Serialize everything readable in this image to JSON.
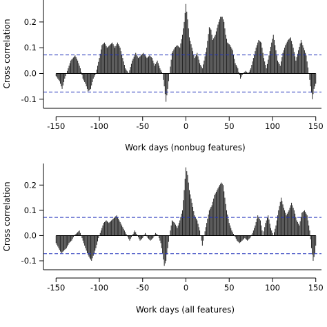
{
  "chart_data": [
    {
      "type": "bar",
      "xlabel": "Work days (nonbug features)",
      "ylabel": "Cross correlation",
      "xlim": [
        -155,
        155
      ],
      "ylim": [
        -0.13,
        0.28
      ],
      "xticks": [
        -150,
        -100,
        -50,
        0,
        50,
        100,
        150
      ],
      "xtick_labels": [
        "-150",
        "-100",
        "-50",
        "0",
        "50",
        "100",
        "150"
      ],
      "yticks": [
        -0.1,
        0.0,
        0.1,
        0.2
      ],
      "ytick_labels": [
        "-0.1",
        "0.0",
        "0.1",
        "0.2"
      ],
      "confidence_band": [
        -0.072,
        0.072
      ],
      "lag_range": [
        -150,
        150
      ],
      "anchors": [
        [
          -150,
          -0.01
        ],
        [
          -146,
          -0.03
        ],
        [
          -143,
          -0.06
        ],
        [
          -140,
          -0.02
        ],
        [
          -137,
          0.01
        ],
        [
          -133,
          0.05
        ],
        [
          -128,
          0.07
        ],
        [
          -125,
          0.05
        ],
        [
          -122,
          0.02
        ],
        [
          -119,
          -0.02
        ],
        [
          -116,
          -0.04
        ],
        [
          -113,
          -0.07
        ],
        [
          -110,
          -0.06
        ],
        [
          -107,
          -0.02
        ],
        [
          -104,
          0.0
        ],
        [
          -100,
          0.06
        ],
        [
          -97,
          0.11
        ],
        [
          -94,
          0.12
        ],
        [
          -91,
          0.1
        ],
        [
          -88,
          0.11
        ],
        [
          -85,
          0.12
        ],
        [
          -82,
          0.1
        ],
        [
          -79,
          0.12
        ],
        [
          -76,
          0.1
        ],
        [
          -73,
          0.06
        ],
        [
          -70,
          0.02
        ],
        [
          -66,
          0.0
        ],
        [
          -62,
          0.05
        ],
        [
          -58,
          0.08
        ],
        [
          -55,
          0.06
        ],
        [
          -52,
          0.07
        ],
        [
          -49,
          0.08
        ],
        [
          -45,
          0.06
        ],
        [
          -42,
          0.07
        ],
        [
          -39,
          0.06
        ],
        [
          -36,
          0.03
        ],
        [
          -33,
          0.05
        ],
        [
          -30,
          0.02
        ],
        [
          -27,
          0.0
        ],
        [
          -25,
          -0.05
        ],
        [
          -23,
          -0.11
        ],
        [
          -21,
          -0.06
        ],
        [
          -19,
          0.0
        ],
        [
          -16,
          0.08
        ],
        [
          -13,
          0.1
        ],
        [
          -10,
          0.11
        ],
        [
          -7,
          0.1
        ],
        [
          -4,
          0.15
        ],
        [
          -2,
          0.2
        ],
        [
          0,
          0.27
        ],
        [
          2,
          0.21
        ],
        [
          4,
          0.14
        ],
        [
          7,
          0.1
        ],
        [
          10,
          0.06
        ],
        [
          13,
          0.08
        ],
        [
          16,
          0.04
        ],
        [
          19,
          0.02
        ],
        [
          21,
          0.05
        ],
        [
          24,
          0.1
        ],
        [
          27,
          0.18
        ],
        [
          29,
          0.17
        ],
        [
          31,
          0.13
        ],
        [
          34,
          0.15
        ],
        [
          37,
          0.19
        ],
        [
          40,
          0.22
        ],
        [
          42,
          0.22
        ],
        [
          44,
          0.2
        ],
        [
          46,
          0.15
        ],
        [
          48,
          0.12
        ],
        [
          51,
          0.11
        ],
        [
          54,
          0.09
        ],
        [
          57,
          0.04
        ],
        [
          60,
          0.02
        ],
        [
          63,
          -0.02
        ],
        [
          66,
          0.0
        ],
        [
          69,
          0.01
        ],
        [
          72,
          0.0
        ],
        [
          75,
          0.02
        ],
        [
          78,
          0.06
        ],
        [
          81,
          0.1
        ],
        [
          84,
          0.13
        ],
        [
          87,
          0.12
        ],
        [
          90,
          0.06
        ],
        [
          93,
          0.02
        ],
        [
          96,
          0.07
        ],
        [
          99,
          0.12
        ],
        [
          101,
          0.15
        ],
        [
          103,
          0.11
        ],
        [
          106,
          0.05
        ],
        [
          109,
          0.03
        ],
        [
          112,
          0.08
        ],
        [
          115,
          0.11
        ],
        [
          118,
          0.13
        ],
        [
          121,
          0.14
        ],
        [
          124,
          0.1
        ],
        [
          127,
          0.05
        ],
        [
          130,
          0.09
        ],
        [
          133,
          0.13
        ],
        [
          136,
          0.1
        ],
        [
          139,
          0.07
        ],
        [
          142,
          0.0
        ],
        [
          144,
          -0.05
        ],
        [
          146,
          -0.1
        ],
        [
          148,
          -0.06
        ],
        [
          150,
          -0.04
        ]
      ]
    },
    {
      "type": "bar",
      "xlabel": "Work days (all features)",
      "ylabel": "Cross correlation",
      "xlim": [
        -155,
        155
      ],
      "ylim": [
        -0.13,
        0.28
      ],
      "xticks": [
        -150,
        -100,
        -50,
        0,
        50,
        100,
        150
      ],
      "xtick_labels": [
        "-150",
        "-100",
        "-50",
        "0",
        "50",
        "100",
        "150"
      ],
      "yticks": [
        -0.1,
        0.0,
        0.1,
        0.2
      ],
      "ytick_labels": [
        "-0.1",
        "0.0",
        "0.1",
        "0.2"
      ],
      "confidence_band": [
        -0.072,
        0.072
      ],
      "lag_range": [
        -150,
        150
      ],
      "anchors": [
        [
          -150,
          -0.03
        ],
        [
          -147,
          -0.05
        ],
        [
          -144,
          -0.07
        ],
        [
          -141,
          -0.06
        ],
        [
          -138,
          -0.05
        ],
        [
          -135,
          -0.03
        ],
        [
          -132,
          -0.02
        ],
        [
          -129,
          0.0
        ],
        [
          -126,
          0.01
        ],
        [
          -123,
          0.02
        ],
        [
          -120,
          -0.01
        ],
        [
          -117,
          -0.04
        ],
        [
          -114,
          -0.07
        ],
        [
          -111,
          -0.09
        ],
        [
          -109,
          -0.1
        ],
        [
          -107,
          -0.08
        ],
        [
          -104,
          -0.05
        ],
        [
          -101,
          -0.01
        ],
        [
          -98,
          0.02
        ],
        [
          -95,
          0.05
        ],
        [
          -92,
          0.06
        ],
        [
          -89,
          0.05
        ],
        [
          -86,
          0.06
        ],
        [
          -83,
          0.07
        ],
        [
          -80,
          0.08
        ],
        [
          -77,
          0.06
        ],
        [
          -74,
          0.04
        ],
        [
          -71,
          0.02
        ],
        [
          -68,
          0.0
        ],
        [
          -65,
          -0.02
        ],
        [
          -62,
          0.0
        ],
        [
          -59,
          0.02
        ],
        [
          -56,
          0.0
        ],
        [
          -53,
          -0.02
        ],
        [
          -50,
          -0.01
        ],
        [
          -47,
          0.01
        ],
        [
          -44,
          -0.01
        ],
        [
          -41,
          -0.02
        ],
        [
          -38,
          -0.01
        ],
        [
          -35,
          0.01
        ],
        [
          -32,
          0.0
        ],
        [
          -29,
          -0.03
        ],
        [
          -27,
          -0.07
        ],
        [
          -25,
          -0.12
        ],
        [
          -23,
          -0.1
        ],
        [
          -21,
          -0.05
        ],
        [
          -19,
          0.0
        ],
        [
          -16,
          0.06
        ],
        [
          -13,
          0.05
        ],
        [
          -10,
          0.03
        ],
        [
          -7,
          0.06
        ],
        [
          -4,
          0.1
        ],
        [
          -2,
          0.18
        ],
        [
          0,
          0.27
        ],
        [
          2,
          0.24
        ],
        [
          4,
          0.18
        ],
        [
          7,
          0.13
        ],
        [
          10,
          0.08
        ],
        [
          13,
          0.06
        ],
        [
          16,
          0.02
        ],
        [
          19,
          -0.04
        ],
        [
          21,
          0.0
        ],
        [
          24,
          0.05
        ],
        [
          27,
          0.1
        ],
        [
          30,
          0.12
        ],
        [
          33,
          0.16
        ],
        [
          36,
          0.18
        ],
        [
          39,
          0.2
        ],
        [
          41,
          0.21
        ],
        [
          43,
          0.2
        ],
        [
          45,
          0.15
        ],
        [
          47,
          0.1
        ],
        [
          50,
          0.05
        ],
        [
          53,
          0.02
        ],
        [
          56,
          0.0
        ],
        [
          59,
          -0.02
        ],
        [
          62,
          -0.03
        ],
        [
          65,
          -0.02
        ],
        [
          68,
          -0.01
        ],
        [
          71,
          -0.02
        ],
        [
          74,
          -0.01
        ],
        [
          77,
          0.01
        ],
        [
          80,
          0.04
        ],
        [
          83,
          0.08
        ],
        [
          86,
          0.06
        ],
        [
          89,
          0.0
        ],
        [
          92,
          0.05
        ],
        [
          95,
          0.08
        ],
        [
          98,
          0.03
        ],
        [
          101,
          0.0
        ],
        [
          104,
          0.04
        ],
        [
          107,
          0.1
        ],
        [
          110,
          0.15
        ],
        [
          113,
          0.11
        ],
        [
          116,
          0.08
        ],
        [
          119,
          0.1
        ],
        [
          122,
          0.13
        ],
        [
          125,
          0.1
        ],
        [
          128,
          0.06
        ],
        [
          131,
          0.04
        ],
        [
          134,
          0.09
        ],
        [
          137,
          0.1
        ],
        [
          140,
          0.08
        ],
        [
          143,
          0.02
        ],
        [
          145,
          -0.05
        ],
        [
          147,
          -0.1
        ],
        [
          149,
          -0.07
        ],
        [
          150,
          -0.04
        ]
      ]
    }
  ]
}
